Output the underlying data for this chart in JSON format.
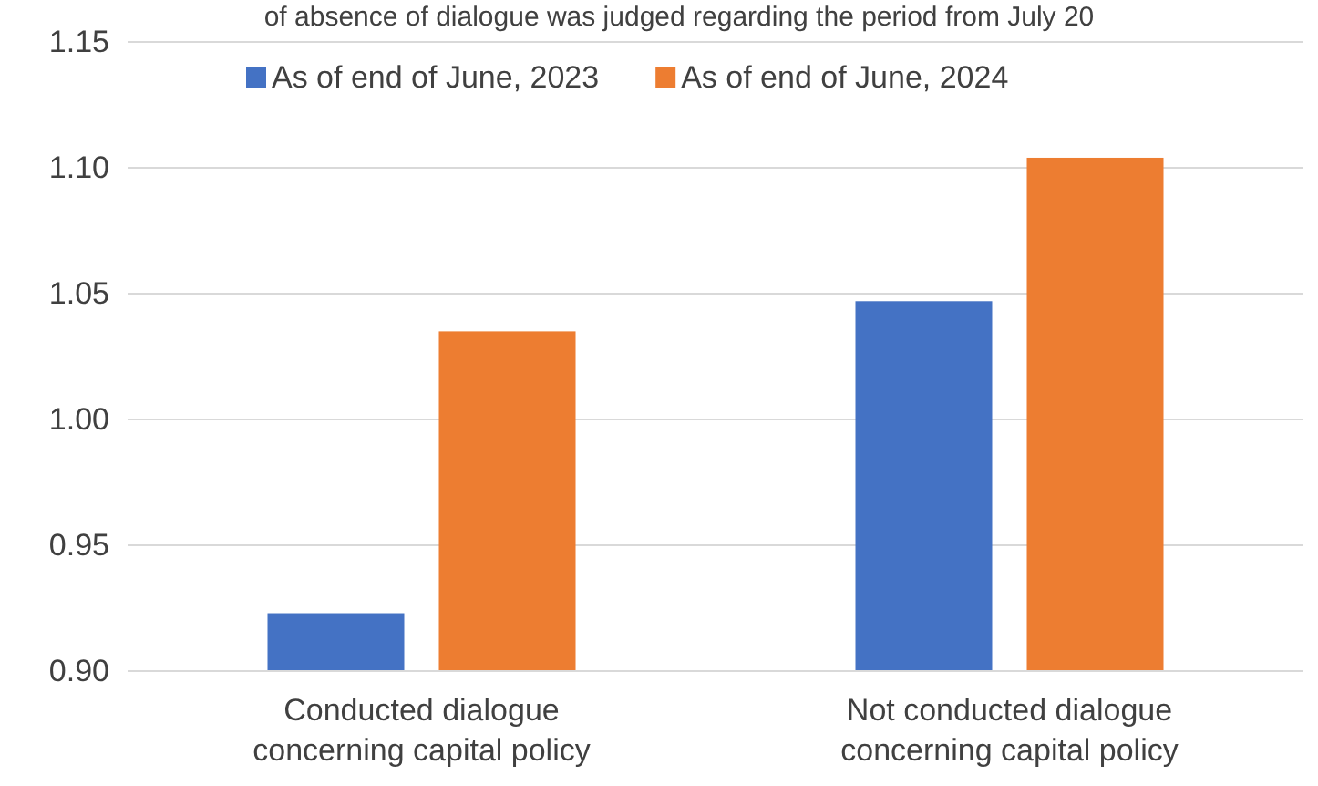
{
  "chart_data": {
    "type": "bar",
    "title": "of absence of dialogue was judged regarding the period from July 20",
    "categories": [
      "Conducted dialogue concerning capital policy",
      "Not conducted dialogue concerning capital policy"
    ],
    "series": [
      {
        "name": "As of end of June, 2023",
        "color": "#4472c4",
        "values": [
          0.923,
          1.047
        ]
      },
      {
        "name": "As of end of June, 2024",
        "color": "#ed7d31",
        "values": [
          1.035,
          1.104
        ]
      }
    ],
    "ylim": [
      0.9,
      1.15
    ],
    "yticks": [
      {
        "value": 0.9,
        "label": "0.90"
      },
      {
        "value": 0.95,
        "label": "0.95"
      },
      {
        "value": 1.0,
        "label": "1.00"
      },
      {
        "value": 1.05,
        "label": "1.05"
      },
      {
        "value": 1.1,
        "label": "1.10"
      },
      {
        "value": 1.15,
        "label": "1.15"
      }
    ],
    "grid": "y",
    "legend": "top"
  }
}
